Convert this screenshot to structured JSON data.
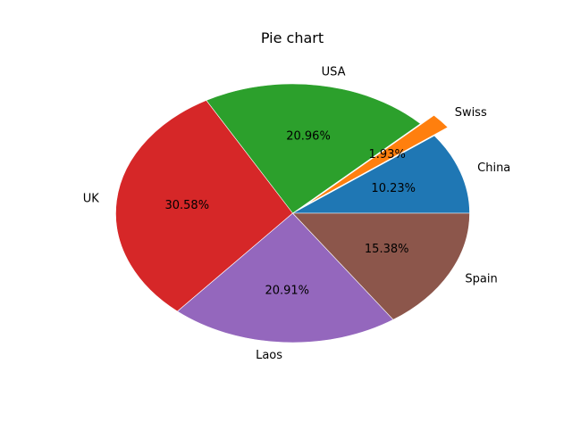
{
  "chart_data": {
    "type": "pie",
    "title": "Pie chart",
    "slices": [
      {
        "label": "China",
        "value": 10.23,
        "pct_label": "10.23%",
        "color": "#1f77b4",
        "explode": 0
      },
      {
        "label": "Swiss",
        "value": 1.93,
        "pct_label": "1.93%",
        "color": "#ff7f0e",
        "explode": 1
      },
      {
        "label": "USA",
        "value": 20.96,
        "pct_label": "20.96%",
        "color": "#2ca02c",
        "explode": 0
      },
      {
        "label": "UK",
        "value": 30.58,
        "pct_label": "30.58%",
        "color": "#d62728",
        "explode": 0
      },
      {
        "label": "Laos",
        "value": 20.91,
        "pct_label": "20.91%",
        "color": "#9467bd",
        "explode": 0
      },
      {
        "label": "Spain",
        "value": 15.38,
        "pct_label": "15.38%",
        "color": "#8c564b",
        "explode": 0
      }
    ],
    "start_angle": 0,
    "direction": "counterclockwise"
  }
}
